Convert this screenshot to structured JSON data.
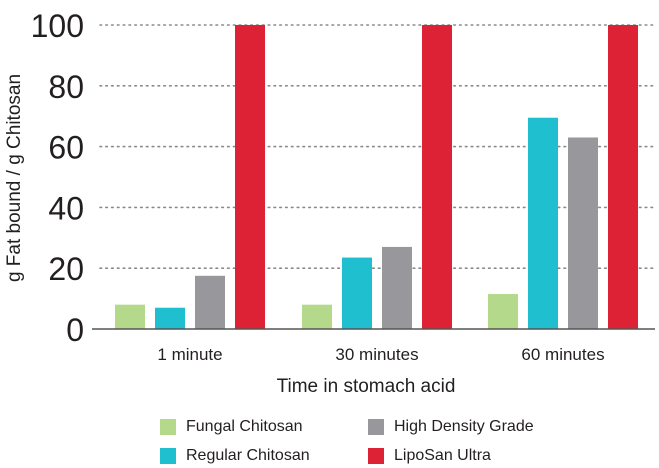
{
  "chart_data": {
    "type": "bar",
    "title": "",
    "xlabel": "Time in stomach acid",
    "ylabel": "g Fat bound / g Chitosan",
    "ylim": [
      0,
      100
    ],
    "yticks": [
      0,
      20,
      40,
      60,
      80,
      100
    ],
    "grid": true,
    "legend_position": "bottom",
    "categories": [
      "1 minute",
      "30 minutes",
      "60 minutes"
    ],
    "series": [
      {
        "name": "Fungal Chitosan",
        "color": "#b5d98b",
        "values": [
          8,
          8,
          11.5
        ]
      },
      {
        "name": "Regular Chitosan",
        "color": "#1fbfcf",
        "values": [
          7,
          23.5,
          69.5
        ]
      },
      {
        "name": "High Density Grade",
        "color": "#98989c",
        "values": [
          17.5,
          27,
          63
        ]
      },
      {
        "name": "LipoSan Ultra",
        "color": "#de2235",
        "values": [
          100,
          100,
          100
        ]
      }
    ]
  }
}
